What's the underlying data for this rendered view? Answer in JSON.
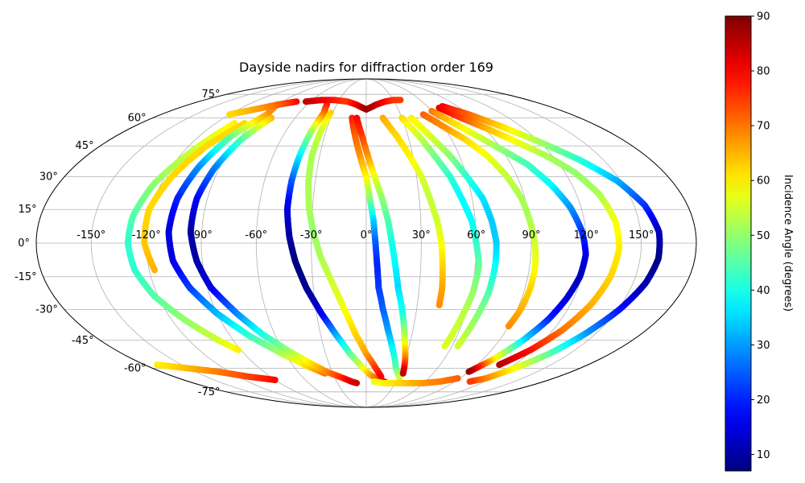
{
  "chart_data": {
    "type": "scatter",
    "projection": "mollweide",
    "title": "Dayside nadirs for diffraction order 169",
    "colorbar": {
      "label": "Incidence Angle (degrees)",
      "colormap": "jet",
      "range": [
        7,
        90
      ],
      "ticks": [
        10,
        20,
        30,
        40,
        50,
        60,
        70,
        80,
        90
      ]
    },
    "grid": true,
    "lon_ticks": [
      "-150°",
      "-120°",
      "-90°",
      "-60°",
      "-30°",
      "0°",
      "30°",
      "60°",
      "90°",
      "120°",
      "150°"
    ],
    "lat_ticks": [
      "75°",
      "60°",
      "45°",
      "30°",
      "15°",
      "0°",
      "-15°",
      "-30°",
      "-45°",
      "-60°",
      "-75°"
    ],
    "lon_tick_values": [
      -150,
      -120,
      -90,
      -60,
      -30,
      0,
      30,
      60,
      90,
      120,
      150
    ],
    "lat_tick_values": [
      75,
      60,
      45,
      30,
      15,
      0,
      -15,
      -30,
      -45,
      -60,
      -75
    ],
    "series": [
      {
        "values": [
          [
            -105,
            57,
            60
          ],
          [
            -115,
            42,
            55
          ],
          [
            -124,
            27,
            50
          ],
          [
            -129,
            12,
            45
          ],
          [
            -130,
            0,
            42
          ],
          [
            -128,
            -12,
            42
          ],
          [
            -122,
            -24,
            45
          ],
          [
            -112,
            -35,
            50
          ],
          [
            -100,
            -45,
            55
          ],
          [
            -92,
            -50,
            60
          ]
        ]
      },
      {
        "values": [
          [
            -97,
            57,
            62
          ],
          [
            -108,
            45,
            62
          ],
          [
            -116,
            30,
            62
          ],
          [
            -121,
            15,
            62
          ],
          [
            -121,
            0,
            63
          ],
          [
            -117,
            -12,
            65
          ]
        ]
      },
      {
        "values": [
          [
            -90,
            68,
            68
          ],
          [
            -87,
            62,
            68
          ],
          [
            -97,
            50,
            48
          ],
          [
            -103,
            35,
            30
          ],
          [
            -107,
            20,
            20
          ],
          [
            -108,
            5,
            14
          ],
          [
            -106,
            -8,
            15
          ],
          [
            -100,
            -20,
            22
          ],
          [
            -90,
            -32,
            32
          ],
          [
            -77,
            -43,
            42
          ],
          [
            -62,
            -52,
            52
          ],
          [
            -48,
            -59,
            62
          ],
          [
            -37,
            -63,
            70
          ]
        ]
      },
      {
        "values": [
          [
            -80,
            60,
            65
          ],
          [
            -88,
            48,
            45
          ],
          [
            -93,
            34,
            28
          ],
          [
            -96,
            20,
            18
          ],
          [
            -96,
            5,
            10
          ],
          [
            -93,
            -8,
            10
          ],
          [
            -88,
            -20,
            15
          ],
          [
            -78,
            -32,
            28
          ],
          [
            -68,
            -42,
            40
          ],
          [
            -57,
            -50,
            50
          ],
          [
            -45,
            -57,
            60
          ],
          [
            -35,
            -62,
            68
          ],
          [
            -25,
            -65,
            75
          ],
          [
            -15,
            -68,
            82
          ],
          [
            -10,
            -69,
            84
          ]
        ]
      },
      {
        "values": [
          [
            -40,
            68,
            78
          ],
          [
            -38,
            63,
            72
          ],
          [
            -41,
            52,
            52
          ],
          [
            -43,
            40,
            38
          ],
          [
            -44,
            28,
            25
          ],
          [
            -44,
            15,
            15
          ],
          [
            -42,
            3,
            10
          ],
          [
            -39,
            -8,
            7
          ],
          [
            -34,
            -20,
            8
          ],
          [
            -27,
            -32,
            15
          ],
          [
            -20,
            -42,
            30
          ],
          [
            -12,
            -52,
            45
          ],
          [
            -4,
            -59,
            55
          ],
          [
            4,
            -64,
            65
          ],
          [
            14,
            -67,
            75
          ],
          [
            22,
            -69,
            83
          ]
        ]
      },
      {
        "values": [
          [
            -32,
            63,
            63
          ],
          [
            -34,
            52,
            55
          ],
          [
            -35,
            40,
            52
          ],
          [
            -34,
            28,
            52
          ],
          [
            -32,
            16,
            52
          ],
          [
            -29,
            5,
            50
          ],
          [
            -25,
            -6,
            52
          ],
          [
            -19,
            -18,
            55
          ],
          [
            -13,
            -30,
            58
          ],
          [
            -7,
            -42,
            62
          ],
          [
            0,
            -52,
            66
          ],
          [
            8,
            -60,
            75
          ],
          [
            14,
            -65,
            80
          ]
        ]
      },
      {
        "values": [
          [
            -90,
            -67,
            80
          ],
          [
            -110,
            -65,
            75
          ],
          [
            -130,
            -62,
            70
          ],
          [
            -150,
            -60,
            65
          ],
          [
            -170,
            -58,
            60
          ]
        ]
      },
      {
        "values": [
          [
            -65,
            70,
            85
          ],
          [
            -50,
            71,
            82
          ],
          [
            -35,
            71,
            78
          ],
          [
            -20,
            70,
            75
          ],
          [
            -10,
            68,
            80
          ],
          [
            0,
            65,
            88
          ],
          [
            10,
            68,
            85
          ],
          [
            20,
            70,
            80
          ],
          [
            30,
            71,
            76
          ],
          [
            38,
            71,
            75
          ]
        ]
      },
      {
        "values": [
          [
            -12,
            60,
            78
          ],
          [
            -8,
            50,
            72
          ],
          [
            -4,
            40,
            68
          ],
          [
            0,
            30,
            60
          ],
          [
            2,
            20,
            50
          ],
          [
            4,
            10,
            35
          ],
          [
            5,
            0,
            25
          ],
          [
            6,
            -10,
            20
          ],
          [
            7,
            -20,
            22
          ],
          [
            10,
            -30,
            25
          ],
          [
            14,
            -40,
            30
          ],
          [
            19,
            -50,
            38
          ],
          [
            25,
            -60,
            45
          ],
          [
            32,
            -66,
            55
          ]
        ]
      },
      {
        "values": [
          [
            -8,
            60,
            80
          ],
          [
            -3,
            50,
            75
          ],
          [
            1,
            40,
            68
          ],
          [
            5,
            30,
            58
          ],
          [
            9,
            20,
            50
          ],
          [
            12,
            10,
            45
          ],
          [
            14,
            0,
            40
          ],
          [
            16,
            -10,
            38
          ],
          [
            18,
            -20,
            35
          ],
          [
            22,
            -32,
            40
          ],
          [
            26,
            -45,
            55
          ],
          [
            30,
            -55,
            70
          ],
          [
            33,
            -63,
            85
          ]
        ]
      },
      {
        "values": [
          [
            14,
            60,
            66
          ],
          [
            22,
            50,
            62
          ],
          [
            28,
            40,
            60
          ],
          [
            33,
            30,
            56
          ],
          [
            36,
            20,
            54
          ],
          [
            39,
            10,
            55
          ],
          [
            41,
            0,
            58
          ],
          [
            42,
            -10,
            62
          ],
          [
            43,
            -20,
            66
          ],
          [
            43,
            -28,
            68
          ]
        ]
      },
      {
        "values": [
          [
            30,
            60,
            62
          ],
          [
            38,
            50,
            55
          ],
          [
            44,
            40,
            48
          ],
          [
            50,
            30,
            42
          ],
          [
            54,
            20,
            38
          ],
          [
            58,
            10,
            38
          ],
          [
            60,
            0,
            42
          ],
          [
            62,
            -10,
            46
          ],
          [
            61,
            -22,
            50
          ],
          [
            58,
            -35,
            54
          ],
          [
            55,
            -48,
            56
          ]
        ]
      },
      {
        "values": [
          [
            38,
            60,
            60
          ],
          [
            46,
            50,
            56
          ],
          [
            54,
            40,
            50
          ],
          [
            60,
            30,
            42
          ],
          [
            66,
            20,
            36
          ],
          [
            69,
            10,
            34
          ],
          [
            71,
            0,
            34
          ],
          [
            71,
            -10,
            38
          ],
          [
            70,
            -22,
            44
          ],
          [
            67,
            -35,
            50
          ],
          [
            64,
            -48,
            55
          ]
        ]
      },
      {
        "values": [
          [
            50,
            62,
            72
          ],
          [
            60,
            55,
            68
          ],
          [
            70,
            48,
            62
          ],
          [
            78,
            40,
            58
          ],
          [
            84,
            30,
            54
          ],
          [
            88,
            20,
            52
          ],
          [
            90,
            10,
            52
          ],
          [
            92,
            0,
            55
          ],
          [
            93,
            -10,
            58
          ],
          [
            93,
            -20,
            62
          ],
          [
            92,
            -30,
            65
          ],
          [
            90,
            -38,
            68
          ]
        ]
      },
      {
        "values": [
          [
            60,
            64,
            70
          ],
          [
            70,
            57,
            62
          ],
          [
            80,
            50,
            56
          ],
          [
            90,
            43,
            50
          ],
          [
            100,
            36,
            44
          ],
          [
            108,
            26,
            38
          ],
          [
            114,
            16,
            30
          ],
          [
            118,
            5,
            22
          ],
          [
            120,
            -5,
            16
          ],
          [
            119,
            -15,
            12
          ],
          [
            116,
            -25,
            14
          ],
          [
            112,
            -35,
            20
          ],
          [
            106,
            -45,
            35
          ],
          [
            98,
            -55,
            60
          ],
          [
            90,
            -62,
            88
          ]
        ]
      },
      {
        "values": [
          [
            70,
            66,
            82
          ],
          [
            80,
            60,
            75
          ],
          [
            92,
            54,
            65
          ],
          [
            104,
            47,
            58
          ],
          [
            116,
            40,
            52
          ],
          [
            126,
            32,
            50
          ],
          [
            133,
            22,
            52
          ],
          [
            137,
            10,
            58
          ],
          [
            138,
            -2,
            60
          ],
          [
            136,
            -15,
            62
          ],
          [
            132,
            -28,
            65
          ],
          [
            126,
            -40,
            70
          ],
          [
            118,
            -50,
            78
          ],
          [
            108,
            -58,
            85
          ]
        ]
      },
      {
        "values": [
          [
            75,
            67,
            80
          ],
          [
            90,
            62,
            72
          ],
          [
            105,
            55,
            62
          ],
          [
            120,
            47,
            52
          ],
          [
            135,
            38,
            42
          ],
          [
            148,
            28,
            32
          ],
          [
            156,
            17,
            22
          ],
          [
            160,
            5,
            12
          ],
          [
            160,
            -7,
            8
          ],
          [
            157,
            -18,
            10
          ],
          [
            151,
            -30,
            18
          ],
          [
            143,
            -42,
            30
          ],
          [
            135,
            -52,
            45
          ],
          [
            125,
            -60,
            58
          ],
          [
            115,
            -66,
            68
          ],
          [
            105,
            -68,
            75
          ]
        ]
      },
      {
        "values": [
          [
            88,
            -66,
            72
          ],
          [
            75,
            -68,
            70
          ],
          [
            60,
            -69,
            68
          ],
          [
            45,
            -69,
            65
          ],
          [
            30,
            -69,
            62
          ],
          [
            18,
            -69,
            60
          ],
          [
            8,
            -68,
            58
          ]
        ]
      },
      {
        "values": [
          [
            -75,
            70,
            80
          ],
          [
            -90,
            68,
            72
          ],
          [
            -100,
            66,
            68
          ],
          [
            -110,
            64,
            65
          ],
          [
            -120,
            62,
            62
          ]
        ]
      }
    ]
  }
}
